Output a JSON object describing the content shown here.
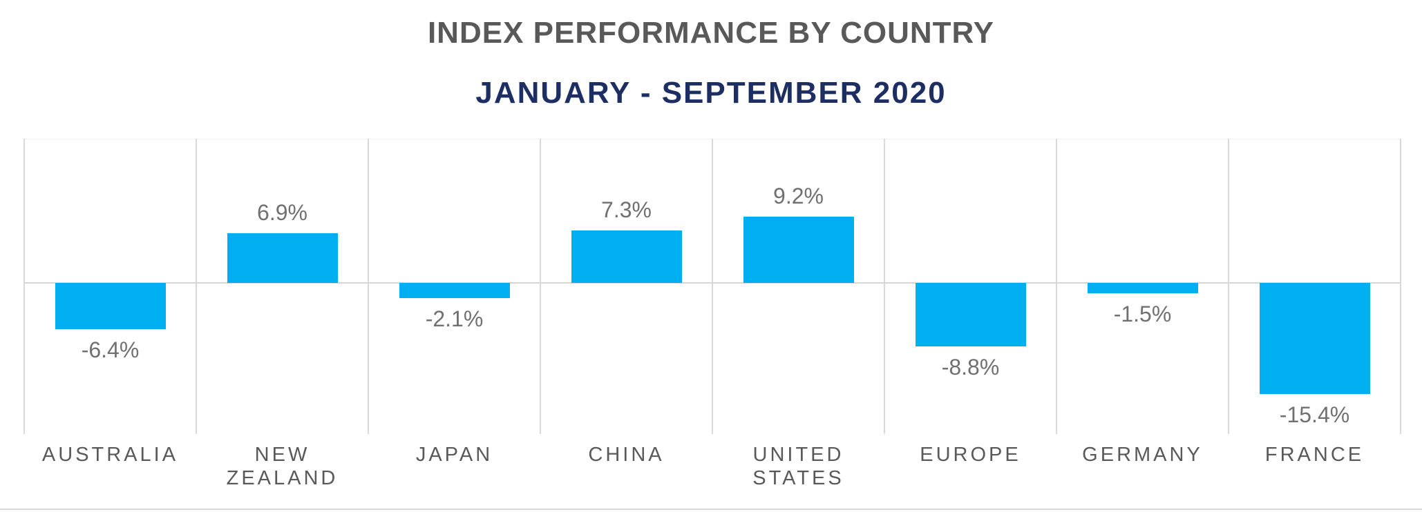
{
  "page": {
    "background_color": "#ffffff"
  },
  "header": {
    "title": "INDEX PERFORMANCE BY COUNTRY",
    "subtitle": "JANUARY - SEPTEMBER 2020",
    "title_color": "#595959",
    "subtitle_color": "#1d2e63"
  },
  "chart_data": {
    "type": "bar",
    "title": "INDEX PERFORMANCE BY COUNTRY",
    "subtitle": "JANUARY - SEPTEMBER 2020",
    "categories": [
      "AUSTRALIA",
      "NEW\nZEALAND",
      "JAPAN",
      "CHINA",
      "UNITED\nSTATES",
      "EUROPE",
      "GERMANY",
      "FRANCE"
    ],
    "values": [
      -6.4,
      6.9,
      -2.1,
      7.3,
      9.2,
      -8.8,
      -1.5,
      -15.4
    ],
    "data_labels": [
      "-6.4%",
      "6.9%",
      "-2.1%",
      "7.3%",
      "9.2%",
      "-8.8%",
      "-1.5%",
      "-15.4%"
    ],
    "unit": "%",
    "ylim": [
      -21,
      20
    ],
    "xlabel": "",
    "ylabel": "",
    "legend": "none",
    "grid": "vertical category separators, zero axis line, no y-axis tick labels",
    "bar_color": "#00aff0",
    "gridline_color": "#d9d9d9",
    "zeroline_color": "#d6d6d6",
    "data_label_color": "#707070",
    "category_label_color": "#595959"
  }
}
